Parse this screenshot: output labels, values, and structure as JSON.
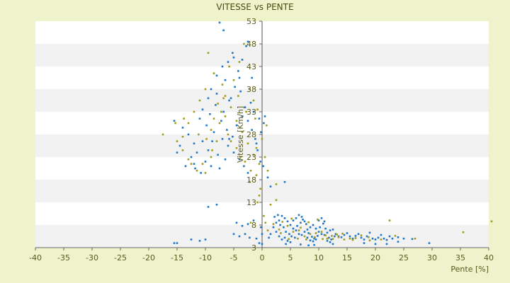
{
  "chart_data": {
    "type": "scatter",
    "title": "VITESSE vs PENTE",
    "xlabel": "Pente [%]",
    "ylabel": "Vitesse [Km/h]",
    "xlim": [
      -40,
      40
    ],
    "ylim": [
      3,
      53
    ],
    "x_ticks": [
      "-40",
      "-35",
      "-30",
      "-25",
      "-20",
      "-15",
      "-10",
      "-5",
      "0",
      "5",
      "10",
      "15",
      "20",
      "25",
      "30",
      "35",
      "40"
    ],
    "y_ticks": [
      "3",
      "8",
      "13",
      "18",
      "23",
      "28",
      "33",
      "38",
      "43",
      "48",
      "53"
    ],
    "grid": true,
    "band_colors": [
      "#ffffff",
      "#f2f2f2"
    ],
    "series_colors": [
      "#1f77c4",
      "#a39b1a"
    ],
    "series": [
      {
        "points": [
          [
            -7.5,
            52.7
          ],
          [
            -6.8,
            51.0
          ],
          [
            -5.0,
            45.0
          ],
          [
            -4.2,
            42.0
          ],
          [
            -3.8,
            37.5
          ],
          [
            -5.5,
            36.0
          ],
          [
            -6.5,
            40.0
          ],
          [
            -8.0,
            37.0
          ],
          [
            -3.0,
            34.0
          ],
          [
            -2.5,
            31.0
          ],
          [
            -10.5,
            33.5
          ],
          [
            -11.0,
            31.5
          ],
          [
            -9.8,
            30.0
          ],
          [
            -8.5,
            28.5
          ],
          [
            -7.0,
            27.0
          ],
          [
            -6.0,
            25.5
          ],
          [
            -5.0,
            24.0
          ],
          [
            -4.0,
            22.5
          ],
          [
            -3.2,
            21.0
          ],
          [
            -2.5,
            19.5
          ],
          [
            -13.0,
            28.0
          ],
          [
            -12.0,
            26.0
          ],
          [
            -11.5,
            24.0
          ],
          [
            -10.0,
            22.0
          ],
          [
            -9.0,
            21.0
          ],
          [
            -7.5,
            20.5
          ],
          [
            -6.5,
            22.5
          ],
          [
            -5.8,
            27.0
          ],
          [
            -4.5,
            30.0
          ],
          [
            -3.5,
            32.0
          ],
          [
            -15.5,
            31.0
          ],
          [
            -14.0,
            29.5
          ],
          [
            -12.5,
            23.0
          ],
          [
            -11.8,
            20.5
          ],
          [
            -10.5,
            26.5
          ],
          [
            -9.2,
            32.5
          ],
          [
            -8.2,
            34.5
          ],
          [
            -7.2,
            31.0
          ],
          [
            -6.2,
            29.0
          ],
          [
            -5.2,
            27.5
          ],
          [
            -15.0,
            24.0
          ],
          [
            -14.5,
            25.5
          ],
          [
            -13.5,
            21.0
          ],
          [
            -12.0,
            21.5
          ],
          [
            -10.8,
            19.5
          ],
          [
            -9.5,
            24.5
          ],
          [
            -8.8,
            26.5
          ],
          [
            -7.8,
            23.5
          ],
          [
            -6.8,
            33.0
          ],
          [
            -5.8,
            35.5
          ],
          [
            -4.8,
            38.5
          ],
          [
            -4.0,
            40.5
          ],
          [
            -3.5,
            44.5
          ],
          [
            -2.8,
            47.5
          ],
          [
            -5.2,
            46.0
          ],
          [
            -6.0,
            44.0
          ],
          [
            -7.0,
            43.0
          ],
          [
            -8.0,
            41.0
          ],
          [
            -9.0,
            38.0
          ],
          [
            -9.5,
            36.0
          ],
          [
            -1.8,
            29.0
          ],
          [
            -1.2,
            27.0
          ],
          [
            -0.8,
            24.5
          ],
          [
            -0.3,
            22.0
          ],
          [
            0.2,
            21.0
          ],
          [
            -1.5,
            33.0
          ],
          [
            -2.0,
            35.0
          ],
          [
            -0.5,
            31.5
          ],
          [
            0.3,
            30.5
          ],
          [
            -1.0,
            26.0
          ],
          [
            -9.5,
            12.0
          ],
          [
            -8.0,
            12.5
          ],
          [
            -4.5,
            8.5
          ],
          [
            -3.5,
            7.8
          ],
          [
            -2.5,
            8.2
          ],
          [
            -1.5,
            9.0
          ],
          [
            -3.0,
            6.0
          ],
          [
            -1.0,
            5.0
          ],
          [
            -0.5,
            4.0
          ],
          [
            -2.2,
            5.2
          ],
          [
            -15.5,
            4.0
          ],
          [
            -15.0,
            4.0
          ],
          [
            -12.5,
            4.8
          ],
          [
            -11.0,
            4.5
          ],
          [
            -10.0,
            4.8
          ],
          [
            -5.0,
            6.0
          ],
          [
            -4.0,
            5.5
          ],
          [
            0.0,
            3.8
          ],
          [
            0.0,
            6.0
          ],
          [
            -0.2,
            7.5
          ],
          [
            1.2,
            5.2
          ],
          [
            1.5,
            6.0
          ],
          [
            2.0,
            7.5
          ],
          [
            2.5,
            8.5
          ],
          [
            3.0,
            9.0
          ],
          [
            3.5,
            10.0
          ],
          [
            4.0,
            9.5
          ],
          [
            4.5,
            8.8
          ],
          [
            5.0,
            8.0
          ],
          [
            5.5,
            7.2
          ],
          [
            6.0,
            6.8
          ],
          [
            6.5,
            6.0
          ],
          [
            7.0,
            5.8
          ],
          [
            7.5,
            6.5
          ],
          [
            8.0,
            7.0
          ],
          [
            8.5,
            7.5
          ],
          [
            9.0,
            8.0
          ],
          [
            9.5,
            7.2
          ],
          [
            10.0,
            6.5
          ],
          [
            10.5,
            6.0
          ],
          [
            11.0,
            5.8
          ],
          [
            11.5,
            6.3
          ],
          [
            12.0,
            6.8
          ],
          [
            12.5,
            7.0
          ],
          [
            13.0,
            6.0
          ],
          [
            13.5,
            5.5
          ],
          [
            14.0,
            5.3
          ],
          [
            14.5,
            5.8
          ],
          [
            15.0,
            6.2
          ],
          [
            15.5,
            5.5
          ],
          [
            16.0,
            5.0
          ],
          [
            16.5,
            5.6
          ],
          [
            17.0,
            6.0
          ],
          [
            17.5,
            5.2
          ],
          [
            18.0,
            4.8
          ],
          [
            18.5,
            5.5
          ],
          [
            19.0,
            6.3
          ],
          [
            19.5,
            5.0
          ],
          [
            20.0,
            4.8
          ],
          [
            20.5,
            5.2
          ],
          [
            21.0,
            5.8
          ],
          [
            21.5,
            5.0
          ],
          [
            22.0,
            4.7
          ],
          [
            22.5,
            5.5
          ],
          [
            23.0,
            5.0
          ],
          [
            24.0,
            5.3
          ],
          [
            25.0,
            5.0
          ],
          [
            26.5,
            4.9
          ],
          [
            2.2,
            9.8
          ],
          [
            2.8,
            10.2
          ],
          [
            3.2,
            8.0
          ],
          [
            3.8,
            7.5
          ],
          [
            4.2,
            6.5
          ],
          [
            4.8,
            6.0
          ],
          [
            5.2,
            5.5
          ],
          [
            5.8,
            5.2
          ],
          [
            6.2,
            7.8
          ],
          [
            6.8,
            8.5
          ],
          [
            7.2,
            9.2
          ],
          [
            7.8,
            8.2
          ],
          [
            8.2,
            6.2
          ],
          [
            8.8,
            5.4
          ],
          [
            9.2,
            5.0
          ],
          [
            9.8,
            5.6
          ],
          [
            10.2,
            7.5
          ],
          [
            10.8,
            8.3
          ],
          [
            11.2,
            7.2
          ],
          [
            11.8,
            5.2
          ],
          [
            12.2,
            4.8
          ],
          [
            12.8,
            5.5
          ],
          [
            2.5,
            6.5
          ],
          [
            3.0,
            5.5
          ],
          [
            3.5,
            4.8
          ],
          [
            4.0,
            5.2
          ],
          [
            4.5,
            4.5
          ],
          [
            5.0,
            4.2
          ],
          [
            5.5,
            9.0
          ],
          [
            6.0,
            9.5
          ],
          [
            6.5,
            10.2
          ],
          [
            7.0,
            9.8
          ],
          [
            7.5,
            8.8
          ],
          [
            8.0,
            5.2
          ],
          [
            8.5,
            4.6
          ],
          [
            9.0,
            4.4
          ],
          [
            9.5,
            4.8
          ],
          [
            10.0,
            9.0
          ],
          [
            10.5,
            9.5
          ],
          [
            11.0,
            8.8
          ],
          [
            11.5,
            4.5
          ],
          [
            12.0,
            4.2
          ],
          [
            4.2,
            3.8
          ],
          [
            6.8,
            3.7
          ],
          [
            8.2,
            3.5
          ],
          [
            9.2,
            3.6
          ],
          [
            12.5,
            3.8
          ],
          [
            18.0,
            4.0
          ],
          [
            20.0,
            3.8
          ],
          [
            22.0,
            3.8
          ],
          [
            24.0,
            4.3
          ],
          [
            29.5,
            4.0
          ],
          [
            4.0,
            17.5
          ],
          [
            1.0,
            18.5
          ],
          [
            1.5,
            16.5
          ],
          [
            -0.2,
            28.5
          ],
          [
            0.5,
            32.0
          ],
          [
            -1.8,
            40.5
          ],
          [
            -2.5,
            48.5
          ]
        ]
      },
      {
        "points": [
          [
            -17.5,
            28.0
          ],
          [
            -15.0,
            26.5
          ],
          [
            -14.0,
            27.5
          ],
          [
            -13.0,
            30.5
          ],
          [
            -12.0,
            33.0
          ],
          [
            -11.0,
            35.5
          ],
          [
            -10.0,
            38.0
          ],
          [
            -9.5,
            46.0
          ],
          [
            -8.5,
            41.5
          ],
          [
            -7.0,
            39.0
          ],
          [
            -6.5,
            36.5
          ],
          [
            -5.5,
            34.0
          ],
          [
            -4.5,
            31.0
          ],
          [
            -3.5,
            28.5
          ],
          [
            -2.5,
            26.0
          ],
          [
            -1.5,
            23.5
          ],
          [
            -0.5,
            21.5
          ],
          [
            -4.0,
            44.0
          ],
          [
            -3.2,
            48.0
          ],
          [
            -5.8,
            43.0
          ],
          [
            -8.8,
            24.5
          ],
          [
            -10.5,
            21.5
          ],
          [
            -11.5,
            20.0
          ],
          [
            -12.5,
            21.5
          ],
          [
            -9.0,
            29.0
          ],
          [
            -7.5,
            30.5
          ],
          [
            -6.5,
            32.0
          ],
          [
            -5.5,
            26.5
          ],
          [
            -4.5,
            25.0
          ],
          [
            -2.0,
            20.0
          ],
          [
            -14.0,
            24.5
          ],
          [
            -13.0,
            22.5
          ],
          [
            -10.0,
            19.5
          ],
          [
            -9.0,
            23.0
          ],
          [
            -8.0,
            26.5
          ],
          [
            -6.0,
            28.0
          ],
          [
            -3.0,
            22.0
          ],
          [
            -1.0,
            25.0
          ],
          [
            0.0,
            27.0
          ],
          [
            0.5,
            23.0
          ],
          [
            1.0,
            20.0
          ],
          [
            2.5,
            17.0
          ],
          [
            1.5,
            12.5
          ],
          [
            2.5,
            13.5
          ],
          [
            -0.5,
            14.5
          ],
          [
            -0.8,
            13.0
          ],
          [
            0.3,
            10.0
          ],
          [
            0.6,
            8.5
          ],
          [
            1.0,
            6.8
          ],
          [
            -2.0,
            8.5
          ],
          [
            3.0,
            7.0
          ],
          [
            4.5,
            7.8
          ],
          [
            5.5,
            6.5
          ],
          [
            6.5,
            6.8
          ],
          [
            7.5,
            5.5
          ],
          [
            8.5,
            6.0
          ],
          [
            9.5,
            6.2
          ],
          [
            10.5,
            6.5
          ],
          [
            11.5,
            5.0
          ],
          [
            12.5,
            4.9
          ],
          [
            13.5,
            5.3
          ],
          [
            14.5,
            4.8
          ],
          [
            15.5,
            5.0
          ],
          [
            16.5,
            5.1
          ],
          [
            17.5,
            5.7
          ],
          [
            19.0,
            4.6
          ],
          [
            21.0,
            4.8
          ],
          [
            22.5,
            9.0
          ],
          [
            23.5,
            5.6
          ],
          [
            27.0,
            5.0
          ],
          [
            35.5,
            6.4
          ],
          [
            40.5,
            8.8
          ],
          [
            2.0,
            8.2
          ],
          [
            3.6,
            8.7
          ],
          [
            5.2,
            9.4
          ],
          [
            6.8,
            7.4
          ],
          [
            8.2,
            8.6
          ],
          [
            9.8,
            9.2
          ],
          [
            11.2,
            5.7
          ],
          [
            13.2,
            5.9
          ],
          [
            3.3,
            6.2
          ],
          [
            4.7,
            4.9
          ],
          [
            6.3,
            5.0
          ],
          [
            7.8,
            4.8
          ],
          [
            9.3,
            5.3
          ],
          [
            10.7,
            4.9
          ],
          [
            12.3,
            5.6
          ],
          [
            14.2,
            6.1
          ],
          [
            16.0,
            4.7
          ],
          [
            18.8,
            5.3
          ],
          [
            -15.3,
            30.5
          ],
          [
            -13.8,
            31.5
          ],
          [
            -11.2,
            28.0
          ],
          [
            -9.8,
            27.0
          ],
          [
            -7.8,
            34.8
          ],
          [
            -6.8,
            36.0
          ],
          [
            -4.2,
            36.5
          ],
          [
            -2.8,
            33.0
          ],
          [
            -1.2,
            31.5
          ],
          [
            0.8,
            30.0
          ],
          [
            -2.2,
            38.0
          ],
          [
            -1.5,
            35.5
          ],
          [
            -0.8,
            33.5
          ],
          [
            -5.0,
            40.0
          ],
          [
            -7.2,
            33.0
          ],
          [
            -8.5,
            31.5
          ],
          [
            -3.8,
            23.0
          ],
          [
            -2.2,
            17.5
          ],
          [
            -1.0,
            19.0
          ],
          [
            -0.3,
            16.0
          ]
        ]
      }
    ]
  }
}
